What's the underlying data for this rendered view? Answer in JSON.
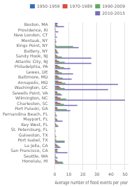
{
  "chart_data": {
    "type": "bar",
    "orientation": "horizontal",
    "categories": [
      "Boston, MA",
      "Providence, RI",
      "New London, CT",
      "Montauk, NY",
      "Kings Point, NY",
      "Battery, NY",
      "Sandy Hook, NJ",
      "Atlantic City, NJ",
      "Philadelphia, PA",
      "Lewes, DE",
      "Baltimore, MD",
      "Annapolis, MD",
      "Washington, DC",
      "Sewells Point, VA",
      "Wilmington, NC",
      "Charleston, SC",
      "Port Pulaski, GA",
      "Fernandina Beach, FL",
      "Mayport, FL",
      "Key West, FL",
      "St. Petersburg, FL",
      "Galveston, TX",
      "Port Isabel, TX",
      "La Jolla, CA",
      "San Francisco, CA",
      "Seattle, WA",
      "Honolulu, HI"
    ],
    "series": [
      {
        "name": "1950-1959",
        "color": "#3a6bbf",
        "values": [
          2.0,
          0.5,
          0.5,
          0.5,
          0.5,
          1.0,
          1.0,
          1.5,
          2.0,
          2.0,
          2.0,
          2.5,
          3.0,
          1.5,
          2.0,
          2.0,
          1.5,
          0.5,
          0.5,
          0.5,
          0.2,
          0.2,
          0.5,
          1.0,
          2.0,
          0.5,
          1.0
        ]
      },
      {
        "name": "1970-1989",
        "color": "#d94f3d",
        "values": [
          1.5,
          0.5,
          0.5,
          0.5,
          1.0,
          1.5,
          2.0,
          3.0,
          3.5,
          3.0,
          3.0,
          5.0,
          4.0,
          2.0,
          4.0,
          4.0,
          2.0,
          0.5,
          1.5,
          1.0,
          0.2,
          0.5,
          1.0,
          2.0,
          1.5,
          0.5,
          2.0
        ]
      },
      {
        "name": "1990-2009",
        "color": "#5faa5f",
        "values": [
          2.0,
          0.5,
          0.5,
          1.0,
          13.0,
          2.0,
          5.0,
          7.0,
          6.5,
          5.0,
          5.5,
          7.5,
          7.0,
          4.0,
          8.0,
          6.5,
          8.5,
          1.0,
          2.0,
          2.0,
          0.5,
          0.5,
          7.0,
          3.0,
          2.0,
          1.0,
          5.5
        ]
      },
      {
        "name": "2010-2015",
        "color": "#7b6dba",
        "values": [
          6.5,
          2.5,
          1.5,
          1.0,
          17.0,
          2.5,
          26.0,
          26.0,
          11.0,
          13.0,
          12.0,
          45.0,
          38.0,
          5.0,
          50.0,
          16.0,
          11.0,
          1.5,
          5.5,
          2.5,
          0.5,
          1.0,
          7.0,
          4.0,
          9.0,
          2.0,
          6.0
        ]
      }
    ],
    "xlabel": "Average number of flood events per year",
    "xlim": [
      0,
      52
    ],
    "xticks": [
      0,
      10,
      20,
      30,
      40,
      50
    ],
    "grid": true,
    "legend": "upper right"
  }
}
